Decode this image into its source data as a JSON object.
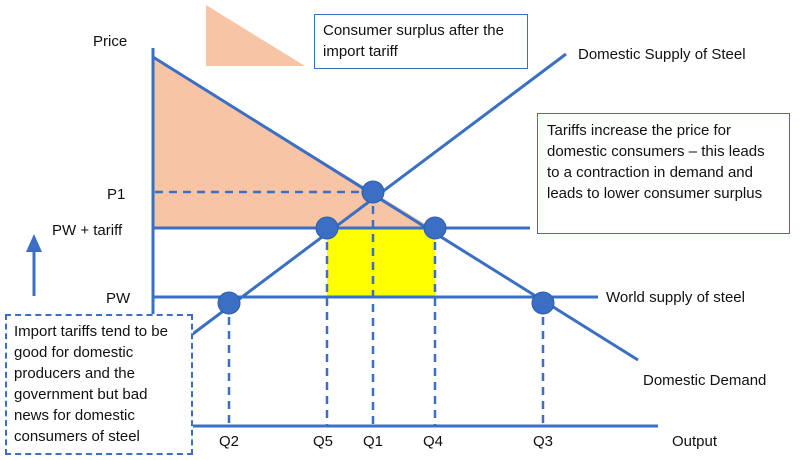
{
  "axes": {
    "y_label": "Price",
    "x_label": "Output"
  },
  "price_levels": {
    "p1": "P1",
    "pw_tariff": "PW + tariff",
    "pw": "PW"
  },
  "quantities": {
    "q2": "Q2",
    "q5": "Q5",
    "q1": "Q1",
    "q4": "Q4",
    "q3": "Q3"
  },
  "curves": {
    "supply": "Domestic Supply of Steel",
    "world_supply": "World supply of steel",
    "demand": "Domestic Demand"
  },
  "notes": {
    "legend": "Consumer surplus after the import tariff",
    "tariff_effect": "Tariffs increase the price for domestic consumers – this leads to a contraction in demand and leads to lower consumer surplus",
    "winners_losers": "Import tariffs tend to be good for domestic producers and the government but bad news for domestic consumers of steel"
  },
  "colors": {
    "line": "#3a6fc4",
    "consumer_surplus_fill": "#f7c4a5",
    "revenue_fill": "#ffff00",
    "point": "#3a6fc4"
  }
}
